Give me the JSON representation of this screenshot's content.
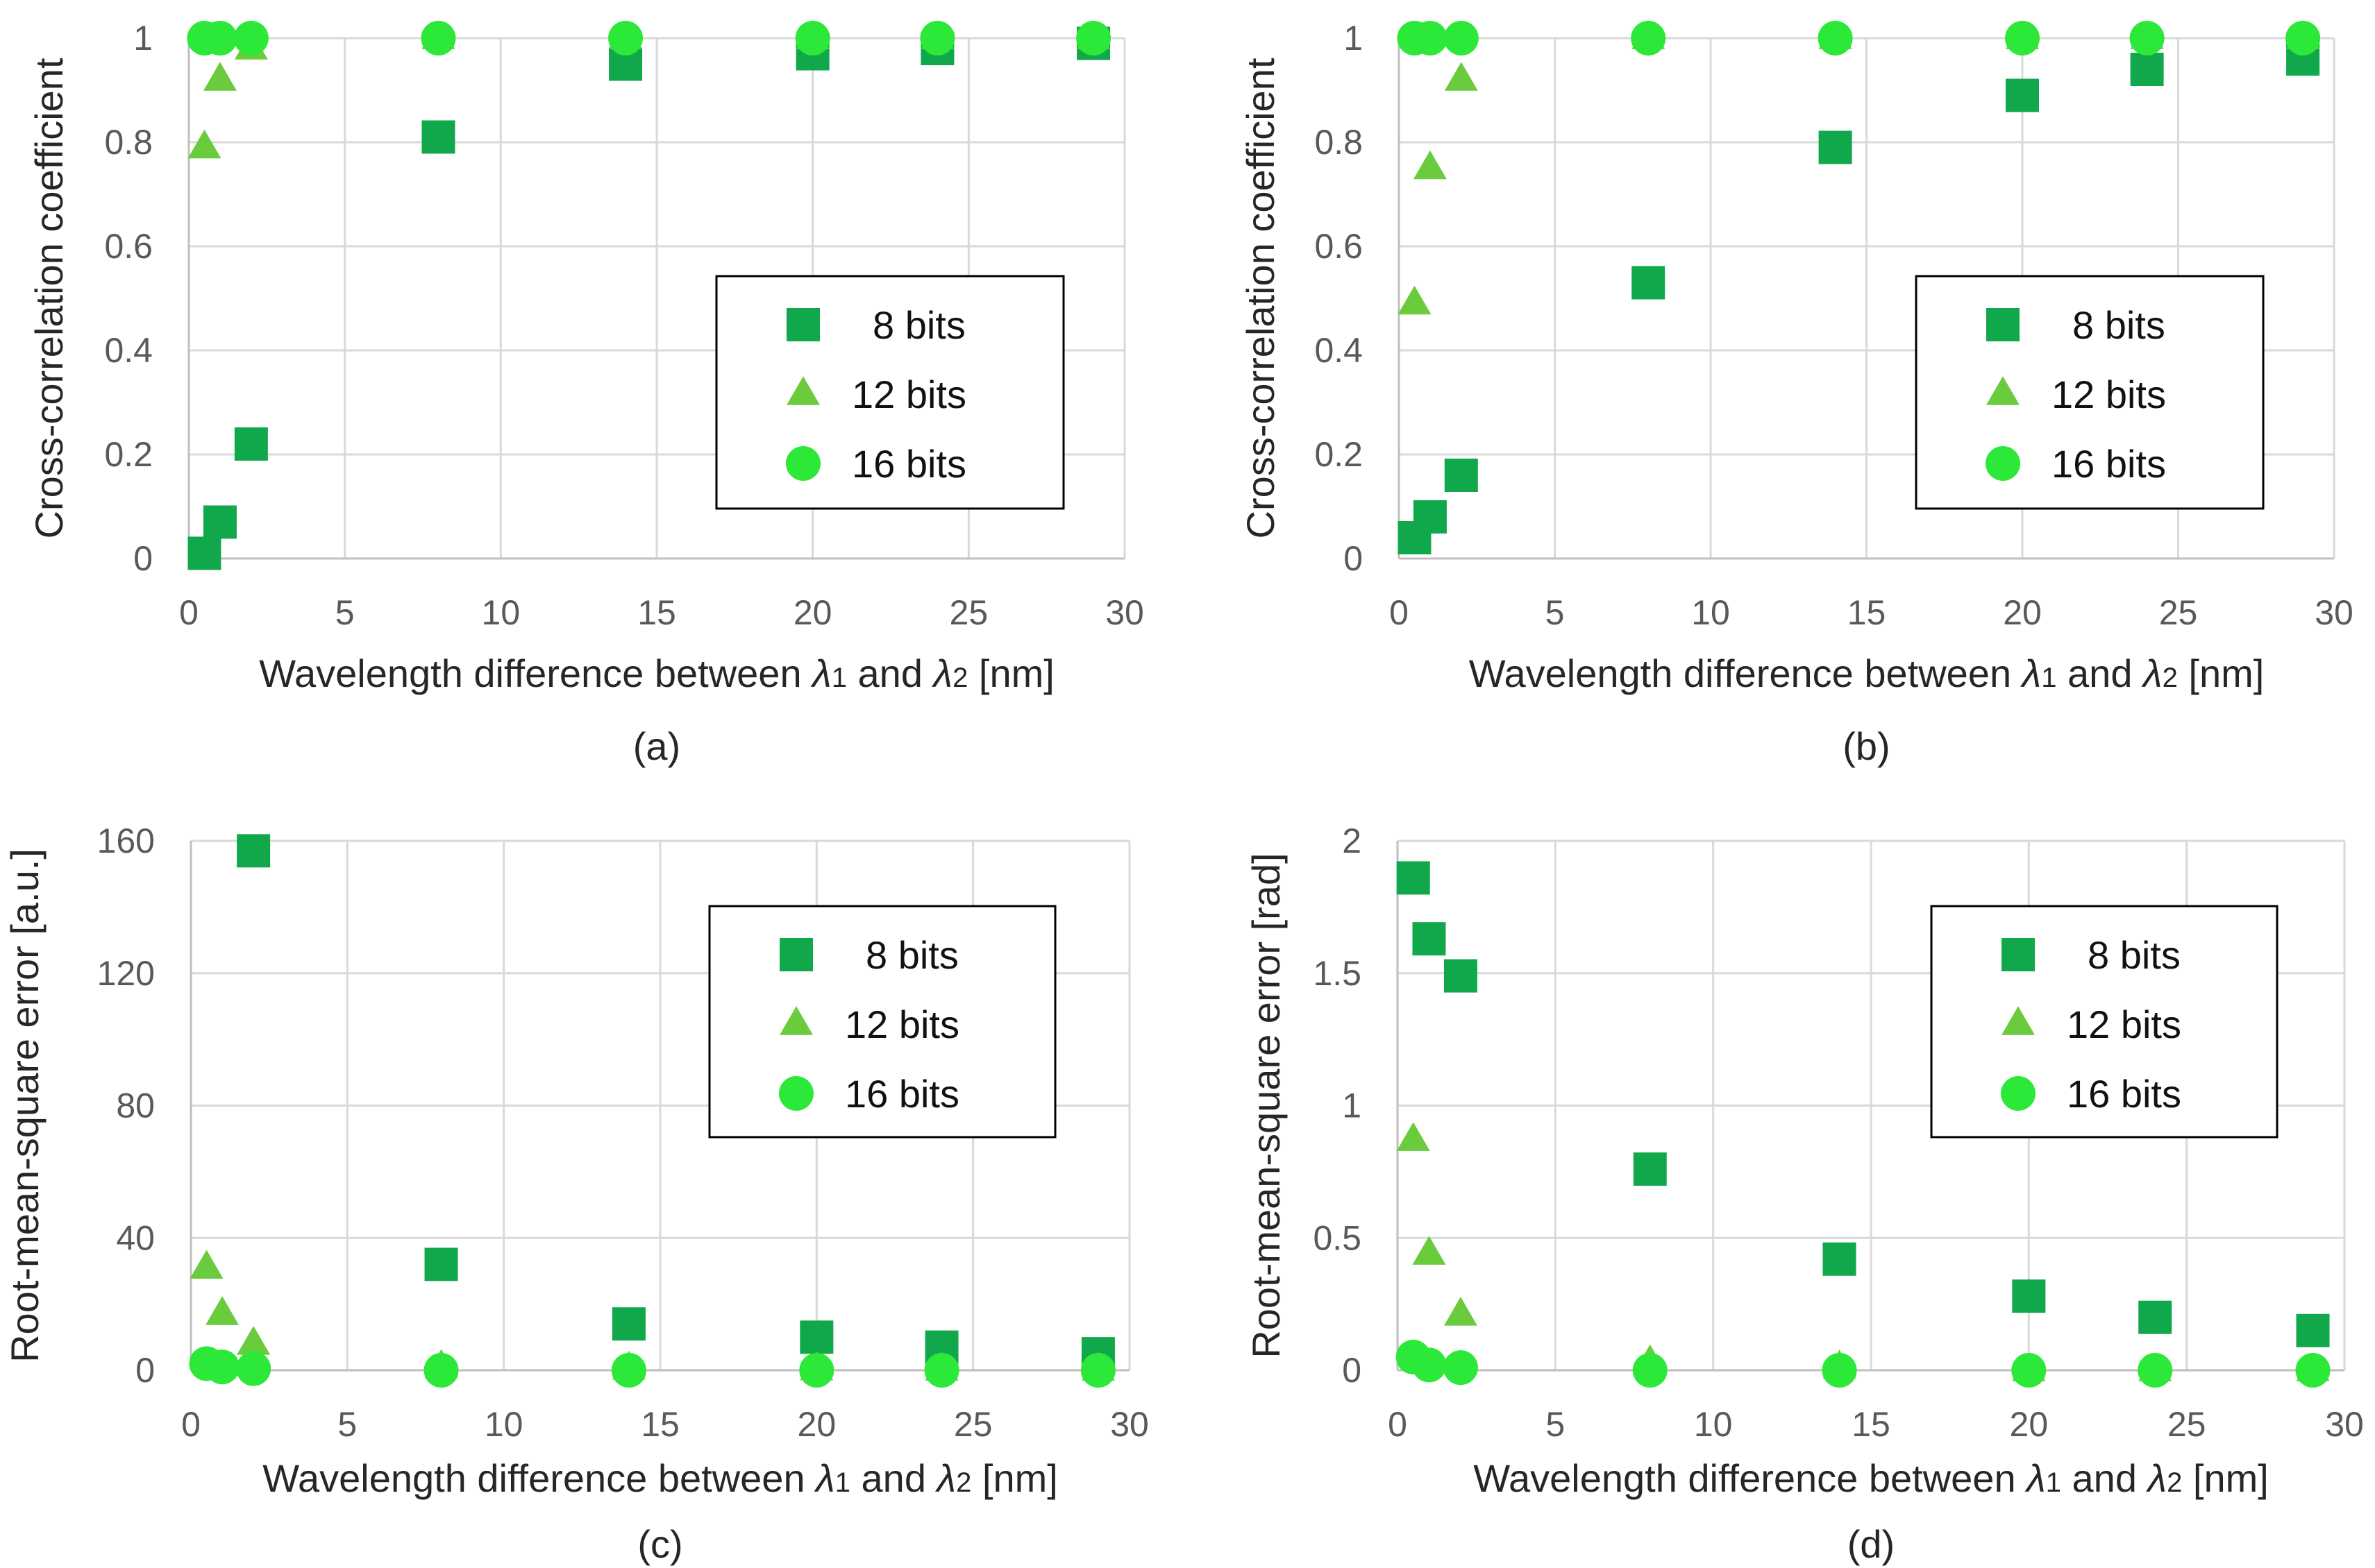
{
  "figure": {
    "series_colors": {
      "8 bits": "#11a84b",
      "12 bits": "#6acc3d",
      "16 bits": "#2ce838"
    },
    "marker_shapes": {
      "8 bits": "square",
      "12 bits": "triangle",
      "16 bits": "circle"
    }
  },
  "chart_data": [
    {
      "type": "scatter",
      "caption": "(a)",
      "xlabel_parts": [
        "Wavelength difference between ",
        "λ",
        "1",
        " and ",
        "λ",
        "2",
        " [nm]"
      ],
      "ylabel": "Cross-correlation coefficient",
      "xlim": [
        0,
        30
      ],
      "ylim": [
        0,
        1
      ],
      "xticks": [
        0,
        5,
        10,
        15,
        20,
        25,
        30
      ],
      "xtick_labels": [
        "0",
        "5",
        "10",
        "15",
        "20",
        "25",
        "30"
      ],
      "yticks": [
        0,
        0.2,
        0.4,
        0.6,
        0.8,
        1
      ],
      "ytick_labels": [
        "0",
        "0.2",
        "0.4",
        "0.6",
        "0.8",
        "1"
      ],
      "grid": true,
      "legend_position": "center-right",
      "series": [
        {
          "name": "8 bits",
          "x": [
            0.5,
            1,
            2,
            8,
            14,
            20,
            24,
            29
          ],
          "y": [
            0.01,
            0.07,
            0.22,
            0.81,
            0.95,
            0.97,
            0.98,
            0.99
          ]
        },
        {
          "name": "12 bits",
          "x": [
            0.5,
            1,
            2,
            8,
            14,
            20,
            24,
            29
          ],
          "y": [
            0.79,
            0.92,
            0.98,
            1.0,
            1.0,
            1.0,
            1.0,
            1.0
          ]
        },
        {
          "name": "16 bits",
          "x": [
            0.5,
            1,
            2,
            8,
            14,
            20,
            24,
            29
          ],
          "y": [
            1.0,
            1.0,
            1.0,
            1.0,
            1.0,
            1.0,
            1.0,
            1.0
          ]
        }
      ]
    },
    {
      "type": "scatter",
      "caption": "(b)",
      "xlabel_parts": [
        "Wavelength difference between ",
        "λ",
        "1",
        " and ",
        "λ",
        "2",
        " [nm]"
      ],
      "ylabel": "Cross-correlation coefficient",
      "xlim": [
        0,
        30
      ],
      "ylim": [
        0,
        1
      ],
      "xticks": [
        0,
        5,
        10,
        15,
        20,
        25,
        30
      ],
      "xtick_labels": [
        "0",
        "5",
        "10",
        "15",
        "20",
        "25",
        "30"
      ],
      "yticks": [
        0,
        0.2,
        0.4,
        0.6,
        0.8,
        1
      ],
      "ytick_labels": [
        "0",
        "0.2",
        "0.4",
        "0.6",
        "0.8",
        "1"
      ],
      "grid": true,
      "legend_position": "center-right",
      "series": [
        {
          "name": "8 bits",
          "x": [
            0.5,
            1,
            2,
            8,
            14,
            20,
            24,
            29
          ],
          "y": [
            0.04,
            0.08,
            0.16,
            0.53,
            0.79,
            0.89,
            0.94,
            0.96
          ]
        },
        {
          "name": "12 bits",
          "x": [
            0.5,
            1,
            2,
            8,
            14,
            20,
            24,
            29
          ],
          "y": [
            0.49,
            0.75,
            0.92,
            1.0,
            1.0,
            1.0,
            1.0,
            1.0
          ]
        },
        {
          "name": "16 bits",
          "x": [
            0.5,
            1,
            2,
            8,
            14,
            20,
            24,
            29
          ],
          "y": [
            1.0,
            1.0,
            1.0,
            1.0,
            1.0,
            1.0,
            1.0,
            1.0
          ]
        }
      ]
    },
    {
      "type": "scatter",
      "caption": "(c)",
      "xlabel_parts": [
        "Wavelength difference between ",
        "λ",
        "1",
        " and ",
        "λ",
        "2",
        " [nm]"
      ],
      "ylabel": "Root-mean-square error [a.u.]",
      "xlim": [
        0,
        30
      ],
      "ylim": [
        0,
        160
      ],
      "xticks": [
        0,
        5,
        10,
        15,
        20,
        25,
        30
      ],
      "xtick_labels": [
        "0",
        "5",
        "10",
        "15",
        "20",
        "25",
        "30"
      ],
      "yticks": [
        0,
        40,
        80,
        120,
        160
      ],
      "ytick_labels": [
        "0",
        "40",
        "80",
        "120",
        "160"
      ],
      "grid": true,
      "legend_position": "top-right",
      "series": [
        {
          "name": "8 bits",
          "x": [
            2,
            8,
            14,
            20,
            24,
            29
          ],
          "y": [
            157,
            32,
            14,
            10,
            7,
            5
          ]
        },
        {
          "name": "12 bits",
          "x": [
            0.5,
            1,
            2,
            8,
            14,
            20,
            24,
            29
          ],
          "y": [
            31,
            17,
            8,
            1,
            0.5,
            0.3,
            0.2,
            0.2
          ]
        },
        {
          "name": "16 bits",
          "x": [
            0.5,
            1,
            2,
            8,
            14,
            20,
            24,
            29
          ],
          "y": [
            2,
            1,
            0.5,
            0,
            0,
            0,
            0,
            0
          ]
        }
      ]
    },
    {
      "type": "scatter",
      "caption": "(d)",
      "xlabel_parts": [
        "Wavelength difference between ",
        "λ",
        "1",
        " and ",
        "λ",
        "2",
        " [nm]"
      ],
      "ylabel": "Root-mean-square error [rad]",
      "xlim": [
        0,
        30
      ],
      "ylim": [
        0,
        2
      ],
      "xticks": [
        0,
        5,
        10,
        15,
        20,
        25,
        30
      ],
      "xtick_labels": [
        "0",
        "5",
        "10",
        "15",
        "20",
        "25",
        "30"
      ],
      "yticks": [
        0,
        0.5,
        1,
        1.5,
        2
      ],
      "ytick_labels": [
        "0",
        "0.5",
        "1",
        "1.5",
        "2"
      ],
      "grid": true,
      "legend_position": "top-right",
      "series": [
        {
          "name": "8 bits",
          "x": [
            0.5,
            1,
            2,
            8,
            14,
            20,
            24,
            29
          ],
          "y": [
            1.86,
            1.63,
            1.49,
            0.76,
            0.42,
            0.28,
            0.2,
            0.15
          ]
        },
        {
          "name": "12 bits",
          "x": [
            0.5,
            1,
            2,
            8,
            14,
            20,
            24,
            29
          ],
          "y": [
            0.87,
            0.44,
            0.21,
            0.03,
            0.01,
            0.0,
            0.0,
            0.0
          ]
        },
        {
          "name": "16 bits",
          "x": [
            0.5,
            1,
            2,
            8,
            14,
            20,
            24,
            29
          ],
          "y": [
            0.05,
            0.02,
            0.01,
            0.0,
            0.0,
            0.0,
            0.0,
            0.0
          ]
        }
      ]
    }
  ]
}
